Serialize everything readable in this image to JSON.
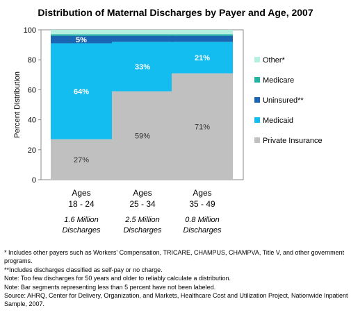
{
  "chart_data": {
    "type": "bar",
    "stacked": true,
    "title": "Distribution of Maternal Discharges by Payer and Age, 2007",
    "ylabel": "Percent Distribution",
    "ylim": [
      0,
      100
    ],
    "yticks": [
      0,
      20,
      40,
      60,
      80,
      100
    ],
    "grid": false,
    "legend_position": "right",
    "categories": [
      {
        "label": "Ages",
        "range": "18 - 24",
        "sub1": "1.6 Million",
        "sub2": "Discharges"
      },
      {
        "label": "Ages",
        "range": "25 - 34",
        "sub1": "2.5 Million",
        "sub2": "Discharges"
      },
      {
        "label": "Ages",
        "range": "35 - 49",
        "sub1": "0.8 Million",
        "sub2": "Discharges"
      }
    ],
    "series": [
      {
        "name": "Private Insurance",
        "color": "#c0c0c0",
        "values": [
          27,
          59,
          71
        ],
        "labels": [
          "27%",
          "59%",
          "71%"
        ],
        "label_style": "dark"
      },
      {
        "name": "Medicaid",
        "color": "#14bdf0",
        "values": [
          64,
          33,
          21
        ],
        "labels": [
          "64%",
          "33%",
          "21%"
        ],
        "label_style": "light"
      },
      {
        "name": "Uninsured**",
        "color": "#1a66b2",
        "values": [
          5,
          4,
          4
        ],
        "labels": [
          "5%",
          "",
          ""
        ],
        "label_style": "light"
      },
      {
        "name": "Medicare",
        "color": "#27b3a3",
        "values": [
          1,
          1,
          1
        ],
        "labels": [
          "",
          "",
          ""
        ],
        "label_style": "light"
      },
      {
        "name": "Other*",
        "color": "#b3f0e0",
        "values": [
          3,
          3,
          3
        ],
        "labels": [
          "",
          "",
          ""
        ],
        "label_style": "light"
      }
    ],
    "legend_order": [
      "Other*",
      "Medicare",
      "Uninsured**",
      "Medicaid",
      "Private Insurance"
    ]
  },
  "notes": [
    "* Includes other payers such as Workers' Compensation, TRICARE, CHAMPUS, CHAMPVA, Title V, and other government programs.",
    "**Includes discharges classified as self-pay or no charge.",
    "Note: Too few discharges for 50 years and older to reliably calculate a distribution.",
    "Note: Bar segments representing less than 5 percent have not been labeled.",
    "Source:  AHRQ, Center for Delivery, Organization, and Markets, Healthcare Cost and Utilization Project, Nationwide Inpatient Sample, 2007."
  ]
}
